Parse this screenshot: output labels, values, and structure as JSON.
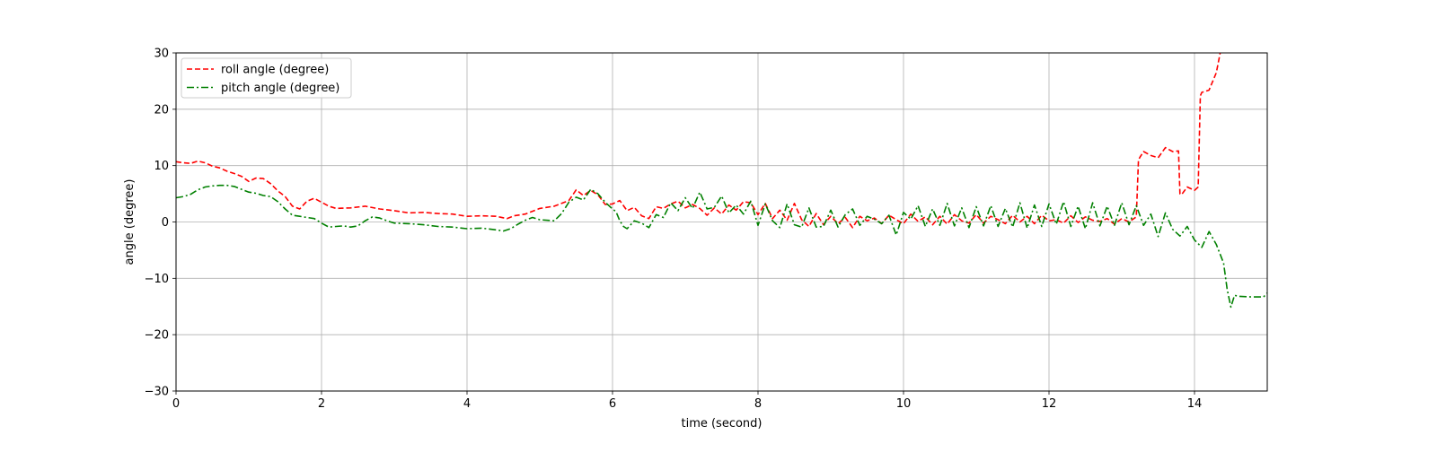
{
  "chart_data": {
    "type": "line",
    "title": "",
    "xlabel": "time (second)",
    "ylabel": "angle (degree)",
    "xlim": [
      0,
      15
    ],
    "ylim": [
      -30,
      30
    ],
    "xticks": [
      0,
      2,
      4,
      6,
      8,
      10,
      12,
      14
    ],
    "yticks": [
      -30,
      -20,
      -10,
      0,
      10,
      20,
      30
    ],
    "grid": true,
    "legend_position": "top-left",
    "series": [
      {
        "name": "roll angle (degree)",
        "color": "#ff0000",
        "style": "dashed",
        "x": [
          0,
          0.1,
          0.2,
          0.3,
          0.4,
          0.5,
          0.6,
          0.7,
          0.8,
          0.9,
          1.0,
          1.1,
          1.2,
          1.3,
          1.4,
          1.5,
          1.6,
          1.7,
          1.8,
          1.9,
          2.0,
          2.1,
          2.2,
          2.4,
          2.6,
          2.8,
          3.0,
          3.2,
          3.4,
          3.6,
          3.8,
          4.0,
          4.2,
          4.4,
          4.55,
          4.65,
          4.8,
          5.0,
          5.2,
          5.4,
          5.5,
          5.6,
          5.7,
          5.8,
          5.9,
          6.0,
          6.1,
          6.2,
          6.3,
          6.4,
          6.5,
          6.6,
          6.7,
          6.8,
          6.9,
          7.0,
          7.1,
          7.2,
          7.3,
          7.4,
          7.5,
          7.6,
          7.7,
          7.8,
          7.9,
          8.0,
          8.1,
          8.2,
          8.3,
          8.4,
          8.5,
          8.6,
          8.7,
          8.8,
          8.9,
          9.0,
          9.1,
          9.2,
          9.3,
          9.4,
          9.5,
          9.6,
          9.7,
          9.8,
          9.9,
          10.0,
          10.1,
          10.2,
          10.3,
          10.4,
          10.5,
          10.6,
          10.7,
          10.8,
          10.9,
          11.0,
          11.1,
          11.2,
          11.3,
          11.4,
          11.5,
          11.6,
          11.7,
          11.8,
          11.9,
          12.0,
          12.1,
          12.2,
          12.3,
          12.4,
          12.5,
          12.6,
          12.7,
          12.8,
          12.9,
          13.0,
          13.1,
          13.2,
          13.23,
          13.25,
          13.3,
          13.4,
          13.5,
          13.6,
          13.7,
          13.78,
          13.8,
          13.82,
          13.9,
          14.0,
          14.05,
          14.08,
          14.1,
          14.2,
          14.3,
          14.36
        ],
        "values": [
          10.7,
          10.5,
          10.4,
          10.8,
          10.5,
          9.9,
          9.6,
          9.0,
          8.6,
          8.1,
          7.2,
          7.8,
          7.7,
          6.8,
          5.5,
          4.5,
          2.8,
          2.3,
          3.7,
          4.2,
          3.5,
          2.8,
          2.4,
          2.5,
          2.8,
          2.3,
          2.0,
          1.6,
          1.7,
          1.5,
          1.4,
          1.0,
          1.1,
          1.0,
          0.6,
          1.1,
          1.4,
          2.4,
          2.8,
          3.8,
          5.7,
          4.7,
          5.6,
          4.8,
          3.1,
          3.2,
          3.8,
          2.0,
          2.6,
          1.1,
          0.6,
          2.7,
          2.4,
          3.2,
          3.7,
          2.5,
          3.1,
          2.4,
          1.2,
          2.5,
          1.4,
          3.0,
          2.1,
          3.6,
          3.4,
          1.3,
          3.3,
          0.6,
          2.1,
          0.3,
          3.3,
          0.4,
          -0.8,
          1.5,
          -0.5,
          1.0,
          -0.3,
          0.8,
          -1.0,
          1.0,
          0.2,
          0.7,
          -0.3,
          1.2,
          0.4,
          -0.3,
          1.4,
          0.1,
          0.9,
          -0.5,
          1.0,
          -0.4,
          1.3,
          0.2,
          -0.2,
          1.3,
          -0.2,
          1.0,
          0.4,
          -0.3,
          1.2,
          0.0,
          1.0,
          -0.3,
          1.2,
          0.2,
          0.4,
          -0.2,
          1.1,
          -0.1,
          0.9,
          0.3,
          0.1,
          0.6,
          -0.4,
          0.6,
          0.0,
          0.9,
          11.0,
          11.5,
          12.5,
          11.8,
          11.4,
          13.2,
          12.5,
          12.6,
          5.0,
          4.8,
          6.2,
          5.6,
          6.2,
          22.4,
          23.0,
          23.4,
          26.5,
          30.5
        ]
      },
      {
        "name": "pitch angle (degree)",
        "color": "#008000",
        "style": "dashdot",
        "x": [
          0,
          0.1,
          0.2,
          0.3,
          0.4,
          0.5,
          0.6,
          0.7,
          0.8,
          0.9,
          1.0,
          1.1,
          1.2,
          1.3,
          1.4,
          1.5,
          1.6,
          1.7,
          1.8,
          1.9,
          2.0,
          2.1,
          2.2,
          2.3,
          2.4,
          2.5,
          2.6,
          2.7,
          2.8,
          2.9,
          3.0,
          3.2,
          3.4,
          3.6,
          3.8,
          4.0,
          4.2,
          4.4,
          4.5,
          4.6,
          4.7,
          4.8,
          4.9,
          5.0,
          5.2,
          5.3,
          5.4,
          5.5,
          5.6,
          5.7,
          5.8,
          5.9,
          6.0,
          6.05,
          6.1,
          6.15,
          6.2,
          6.3,
          6.4,
          6.5,
          6.6,
          6.7,
          6.8,
          6.9,
          7.0,
          7.1,
          7.2,
          7.3,
          7.4,
          7.5,
          7.6,
          7.7,
          7.8,
          7.9,
          8.0,
          8.1,
          8.2,
          8.3,
          8.4,
          8.5,
          8.6,
          8.7,
          8.8,
          8.9,
          9.0,
          9.1,
          9.2,
          9.3,
          9.4,
          9.5,
          9.6,
          9.7,
          9.8,
          9.9,
          10.0,
          10.1,
          10.2,
          10.3,
          10.4,
          10.5,
          10.6,
          10.7,
          10.8,
          10.9,
          11.0,
          11.1,
          11.2,
          11.3,
          11.4,
          11.5,
          11.6,
          11.7,
          11.8,
          11.9,
          12.0,
          12.1,
          12.2,
          12.3,
          12.4,
          12.5,
          12.6,
          12.7,
          12.8,
          12.9,
          13.0,
          13.1,
          13.2,
          13.3,
          13.4,
          13.5,
          13.6,
          13.7,
          13.8,
          13.9,
          14.0,
          14.1,
          14.2,
          14.3,
          14.4,
          14.45,
          14.5,
          14.55,
          14.6,
          14.8,
          14.95,
          15.0
        ],
        "values": [
          4.3,
          4.5,
          4.9,
          5.7,
          6.2,
          6.4,
          6.5,
          6.5,
          6.3,
          5.8,
          5.3,
          5.1,
          4.7,
          4.5,
          3.6,
          2.3,
          1.2,
          1.0,
          0.8,
          0.6,
          -0.2,
          -0.9,
          -0.8,
          -0.7,
          -0.9,
          -0.7,
          0.2,
          0.9,
          0.7,
          0.2,
          -0.2,
          -0.3,
          -0.5,
          -0.8,
          -0.9,
          -1.2,
          -1.1,
          -1.4,
          -1.6,
          -1.2,
          -0.4,
          0.3,
          0.8,
          0.4,
          0.2,
          1.5,
          3.5,
          4.4,
          3.9,
          5.8,
          5.0,
          3.5,
          2.3,
          1.8,
          0.2,
          -0.8,
          -1.2,
          0.2,
          -0.2,
          -1.0,
          1.3,
          0.8,
          3.4,
          2.0,
          4.3,
          2.4,
          5.3,
          2.3,
          2.6,
          4.6,
          1.6,
          3.0,
          1.4,
          3.7,
          -0.6,
          3.2,
          0.2,
          -1.0,
          3.2,
          -0.5,
          -0.9,
          2.5,
          -0.9,
          -0.8,
          2.1,
          -0.9,
          1.3,
          2.3,
          -0.6,
          1.0,
          0.5,
          -0.3,
          1.2,
          -2.3,
          1.7,
          0.5,
          2.9,
          -0.8,
          2.3,
          -0.6,
          3.3,
          -0.7,
          2.5,
          -1.0,
          2.7,
          -0.7,
          2.9,
          -0.8,
          2.4,
          -0.9,
          3.4,
          -1.1,
          3.0,
          -0.8,
          3.2,
          -0.4,
          3.6,
          -0.8,
          2.8,
          -1.2,
          3.4,
          -0.7,
          2.8,
          -0.6,
          3.4,
          -0.5,
          2.9,
          -0.6,
          1.4,
          -2.6,
          1.6,
          -1.3,
          -2.5,
          -0.8,
          -3.2,
          -4.5,
          -1.7,
          -4.0,
          -7.3,
          -12.0,
          -15.1,
          -13.0,
          -13.2,
          -13.3,
          -13.3,
          -12.6
        ]
      }
    ]
  }
}
